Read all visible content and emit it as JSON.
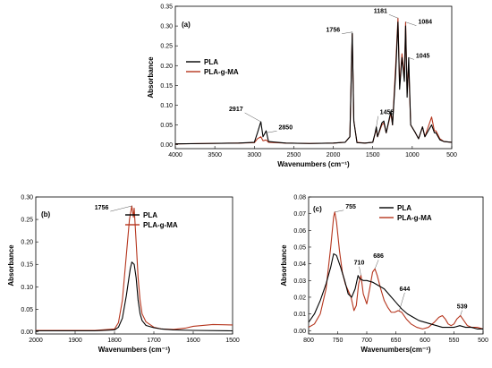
{
  "chart_data": [
    {
      "panel": "(a)",
      "type": "line",
      "xlabel": "Wavenumbers (cm⁻¹)",
      "ylabel": "Absorbance",
      "xlim": [
        4000,
        500
      ],
      "ylim": [
        -0.01,
        0.35
      ],
      "xticks": [
        4000,
        3500,
        3000,
        2500,
        2000,
        1500,
        1000,
        500
      ],
      "yticks": [
        0.0,
        0.05,
        0.1,
        0.15,
        0.2,
        0.25,
        0.3,
        0.35
      ],
      "legend": "middle-left",
      "annotations": [
        {
          "text": "2917",
          "x": 2917,
          "y": 0.058
        },
        {
          "text": "2850",
          "x": 2850,
          "y": 0.03
        },
        {
          "text": "1756",
          "x": 1756,
          "y": 0.285
        },
        {
          "text": "1455",
          "x": 1455,
          "y": 0.045
        },
        {
          "text": "1181",
          "x": 1181,
          "y": 0.32
        },
        {
          "text": "1084",
          "x": 1084,
          "y": 0.31
        },
        {
          "text": "1045",
          "x": 1045,
          "y": 0.22
        }
      ],
      "series": [
        {
          "name": "PLA",
          "color": "#000000",
          "points": [
            [
              4000,
              0.002
            ],
            [
              3600,
              0.003
            ],
            [
              3200,
              0.004
            ],
            [
              3000,
              0.006
            ],
            [
              2960,
              0.03
            ],
            [
              2917,
              0.058
            ],
            [
              2890,
              0.02
            ],
            [
              2850,
              0.035
            ],
            [
              2820,
              0.008
            ],
            [
              2600,
              0.004
            ],
            [
              2300,
              0.003
            ],
            [
              2000,
              0.004
            ],
            [
              1850,
              0.006
            ],
            [
              1790,
              0.02
            ],
            [
              1760,
              0.282
            ],
            [
              1740,
              0.06
            ],
            [
              1700,
              0.005
            ],
            [
              1600,
              0.004
            ],
            [
              1500,
              0.006
            ],
            [
              1470,
              0.03
            ],
            [
              1455,
              0.045
            ],
            [
              1440,
              0.02
            ],
            [
              1385,
              0.055
            ],
            [
              1360,
              0.06
            ],
            [
              1330,
              0.03
            ],
            [
              1270,
              0.085
            ],
            [
              1250,
              0.05
            ],
            [
              1210,
              0.18
            ],
            [
              1181,
              0.31
            ],
            [
              1160,
              0.14
            ],
            [
              1130,
              0.22
            ],
            [
              1100,
              0.16
            ],
            [
              1084,
              0.3
            ],
            [
              1065,
              0.12
            ],
            [
              1045,
              0.22
            ],
            [
              1020,
              0.05
            ],
            [
              960,
              0.03
            ],
            [
              920,
              0.015
            ],
            [
              870,
              0.045
            ],
            [
              840,
              0.02
            ],
            [
              755,
              0.05
            ],
            [
              720,
              0.03
            ],
            [
              700,
              0.03
            ],
            [
              650,
              0.012
            ],
            [
              600,
              0.008
            ],
            [
              500,
              0.006
            ]
          ]
        },
        {
          "name": "PLA-g-MA",
          "color": "#b5351d",
          "points": [
            [
              4000,
              0.002
            ],
            [
              3600,
              0.003
            ],
            [
              3200,
              0.004
            ],
            [
              3000,
              0.005
            ],
            [
              2960,
              0.015
            ],
            [
              2917,
              0.02
            ],
            [
              2890,
              0.01
            ],
            [
              2850,
              0.012
            ],
            [
              2820,
              0.006
            ],
            [
              2600,
              0.004
            ],
            [
              2300,
              0.003
            ],
            [
              2000,
              0.004
            ],
            [
              1850,
              0.006
            ],
            [
              1790,
              0.02
            ],
            [
              1760,
              0.28
            ],
            [
              1740,
              0.06
            ],
            [
              1700,
              0.006
            ],
            [
              1600,
              0.004
            ],
            [
              1500,
              0.006
            ],
            [
              1470,
              0.028
            ],
            [
              1455,
              0.04
            ],
            [
              1440,
              0.02
            ],
            [
              1385,
              0.05
            ],
            [
              1360,
              0.055
            ],
            [
              1330,
              0.03
            ],
            [
              1270,
              0.08
            ],
            [
              1250,
              0.05
            ],
            [
              1210,
              0.2
            ],
            [
              1181,
              0.32
            ],
            [
              1160,
              0.15
            ],
            [
              1130,
              0.23
            ],
            [
              1100,
              0.17
            ],
            [
              1084,
              0.31
            ],
            [
              1065,
              0.13
            ],
            [
              1045,
              0.2
            ],
            [
              1020,
              0.05
            ],
            [
              960,
              0.03
            ],
            [
              920,
              0.015
            ],
            [
              870,
              0.045
            ],
            [
              840,
              0.02
            ],
            [
              755,
              0.07
            ],
            [
              720,
              0.035
            ],
            [
              700,
              0.035
            ],
            [
              650,
              0.015
            ],
            [
              600,
              0.008
            ],
            [
              500,
              0.006
            ]
          ]
        }
      ]
    },
    {
      "panel": "(b)",
      "type": "line",
      "xlabel": "Wavenumbers (cm⁻¹)",
      "ylabel": "Absorbance",
      "xlim": [
        2000,
        1500
      ],
      "ylim": [
        -0.005,
        0.3
      ],
      "xticks": [
        2000,
        1900,
        1800,
        1700,
        1600,
        1500
      ],
      "yticks": [
        0.0,
        0.05,
        0.1,
        0.15,
        0.2,
        0.25,
        0.3
      ],
      "legend": "top-right",
      "annotations": [
        {
          "text": "1756",
          "x": 1756,
          "y": 0.28
        }
      ],
      "series": [
        {
          "name": "PLA",
          "color": "#000000",
          "points": [
            [
              2000,
              0.002
            ],
            [
              1900,
              0.002
            ],
            [
              1850,
              0.002
            ],
            [
              1800,
              0.004
            ],
            [
              1790,
              0.01
            ],
            [
              1780,
              0.03
            ],
            [
              1770,
              0.08
            ],
            [
              1760,
              0.14
            ],
            [
              1756,
              0.155
            ],
            [
              1750,
              0.15
            ],
            [
              1745,
              0.12
            ],
            [
              1740,
              0.07
            ],
            [
              1735,
              0.04
            ],
            [
              1730,
              0.025
            ],
            [
              1720,
              0.014
            ],
            [
              1700,
              0.009
            ],
            [
              1680,
              0.006
            ],
            [
              1650,
              0.004
            ],
            [
              1600,
              0.003
            ],
            [
              1500,
              0.002
            ]
          ]
        },
        {
          "name": "PLA-g-MA",
          "color": "#b5351d",
          "points": [
            [
              2000,
              0.003
            ],
            [
              1900,
              0.003
            ],
            [
              1850,
              0.003
            ],
            [
              1800,
              0.006
            ],
            [
              1790,
              0.02
            ],
            [
              1780,
              0.07
            ],
            [
              1770,
              0.17
            ],
            [
              1762,
              0.25
            ],
            [
              1758,
              0.27
            ],
            [
              1756,
              0.28
            ],
            [
              1752,
              0.255
            ],
            [
              1750,
              0.275
            ],
            [
              1745,
              0.2
            ],
            [
              1740,
              0.12
            ],
            [
              1735,
              0.07
            ],
            [
              1730,
              0.04
            ],
            [
              1720,
              0.022
            ],
            [
              1700,
              0.01
            ],
            [
              1680,
              0.006
            ],
            [
              1650,
              0.005
            ],
            [
              1620,
              0.008
            ],
            [
              1600,
              0.012
            ],
            [
              1550,
              0.016
            ],
            [
              1500,
              0.015
            ]
          ]
        }
      ]
    },
    {
      "panel": "(c)",
      "type": "line",
      "xlabel": "Wavenumbers(cm⁻¹)",
      "ylabel": "Absorbance",
      "xlim": [
        800,
        500
      ],
      "ylim": [
        -0.002,
        0.08
      ],
      "xticks": [
        800,
        750,
        700,
        650,
        600,
        550,
        500
      ],
      "yticks": [
        0.0,
        0.01,
        0.02,
        0.03,
        0.04,
        0.05,
        0.06,
        0.07,
        0.08
      ],
      "legend": "top-right",
      "annotations": [
        {
          "text": "755",
          "x": 755,
          "y": 0.071
        },
        {
          "text": "710",
          "x": 710,
          "y": 0.033
        },
        {
          "text": "686",
          "x": 686,
          "y": 0.037
        },
        {
          "text": "644",
          "x": 644,
          "y": 0.012
        },
        {
          "text": "539",
          "x": 539,
          "y": 0.009
        }
      ],
      "series": [
        {
          "name": "PLA",
          "color": "#000000",
          "points": [
            [
              800,
              0.005
            ],
            [
              790,
              0.01
            ],
            [
              780,
              0.018
            ],
            [
              770,
              0.028
            ],
            [
              762,
              0.038
            ],
            [
              757,
              0.046
            ],
            [
              752,
              0.045
            ],
            [
              745,
              0.038
            ],
            [
              738,
              0.03
            ],
            [
              732,
              0.022
            ],
            [
              726,
              0.02
            ],
            [
              720,
              0.025
            ],
            [
              715,
              0.033
            ],
            [
              712,
              0.031
            ],
            [
              706,
              0.03
            ],
            [
              700,
              0.03
            ],
            [
              690,
              0.029
            ],
            [
              680,
              0.027
            ],
            [
              670,
              0.025
            ],
            [
              660,
              0.021
            ],
            [
              650,
              0.017
            ],
            [
              640,
              0.013
            ],
            [
              630,
              0.01
            ],
            [
              620,
              0.008
            ],
            [
              610,
              0.006
            ],
            [
              600,
              0.005
            ],
            [
              590,
              0.004
            ],
            [
              580,
              0.003
            ],
            [
              570,
              0.002
            ],
            [
              560,
              0.002
            ],
            [
              550,
              0.002
            ],
            [
              540,
              0.003
            ],
            [
              530,
              0.002
            ],
            [
              520,
              0.002
            ],
            [
              510,
              0.001
            ],
            [
              500,
              0.001
            ]
          ]
        },
        {
          "name": "PLA-g-MA",
          "color": "#b5351d",
          "points": [
            [
              800,
              0.002
            ],
            [
              790,
              0.004
            ],
            [
              780,
              0.01
            ],
            [
              770,
              0.025
            ],
            [
              762,
              0.05
            ],
            [
              757,
              0.068
            ],
            [
              755,
              0.071
            ],
            [
              752,
              0.065
            ],
            [
              747,
              0.048
            ],
            [
              742,
              0.035
            ],
            [
              737,
              0.028
            ],
            [
              732,
              0.024
            ],
            [
              727,
              0.02
            ],
            [
              722,
              0.012
            ],
            [
              718,
              0.015
            ],
            [
              714,
              0.028
            ],
            [
              710,
              0.033
            ],
            [
              706,
              0.022
            ],
            [
              700,
              0.016
            ],
            [
              695,
              0.025
            ],
            [
              690,
              0.035
            ],
            [
              686,
              0.037
            ],
            [
              682,
              0.033
            ],
            [
              676,
              0.025
            ],
            [
              670,
              0.018
            ],
            [
              664,
              0.014
            ],
            [
              658,
              0.011
            ],
            [
              652,
              0.011
            ],
            [
              646,
              0.012
            ],
            [
              640,
              0.011
            ],
            [
              632,
              0.007
            ],
            [
              624,
              0.004
            ],
            [
              614,
              0.002
            ],
            [
              604,
              0.001
            ],
            [
              594,
              0.002
            ],
            [
              584,
              0.005
            ],
            [
              576,
              0.008
            ],
            [
              570,
              0.009
            ],
            [
              565,
              0.007
            ],
            [
              560,
              0.004
            ],
            [
              555,
              0.003
            ],
            [
              550,
              0.004
            ],
            [
              545,
              0.007
            ],
            [
              539,
              0.009
            ],
            [
              533,
              0.006
            ],
            [
              527,
              0.003
            ],
            [
              520,
              0.002
            ],
            [
              510,
              0.002
            ],
            [
              500,
              0.001
            ]
          ]
        }
      ]
    }
  ]
}
